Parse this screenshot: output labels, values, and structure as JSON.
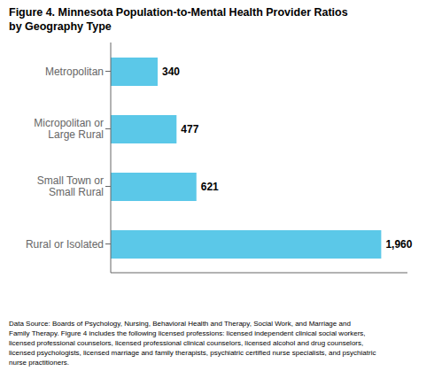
{
  "chart_data": {
    "type": "bar",
    "title": "Figure 4. Minnesota Population-to-Mental Health Provider Ratios\nby Geography Type",
    "categories": [
      "Metropolitan",
      "Micropolitan or\nLarge Rural",
      "Small Town or\nSmall Rural",
      "Rural or Isolated"
    ],
    "values": [
      340,
      477,
      621,
      1960
    ],
    "value_labels": [
      "340",
      "477",
      "621",
      "1,960"
    ],
    "color": "#5BC8E8",
    "orientation": "horizontal",
    "data_labels": true,
    "tick_labels": "y",
    "grid": false,
    "xlim": [
      0,
      2150
    ],
    "annotations": [
      "Data Source: Boards of Psychology, Nursing, Behavioral Health and Therapy, Social Work, and Marriage and\nFamily Therapy. Figure 4 includes the following licensed professions: licensed independent clinical social workers,\nlicensed professional counselors, licensed professional clinical counselors, licensed alcohol and drug counselors,\nlicensed psychologists, licensed marriage and family therapists, psychiatric certified nurse specialists, and psychiatric\nnurse practitioners."
    ]
  }
}
